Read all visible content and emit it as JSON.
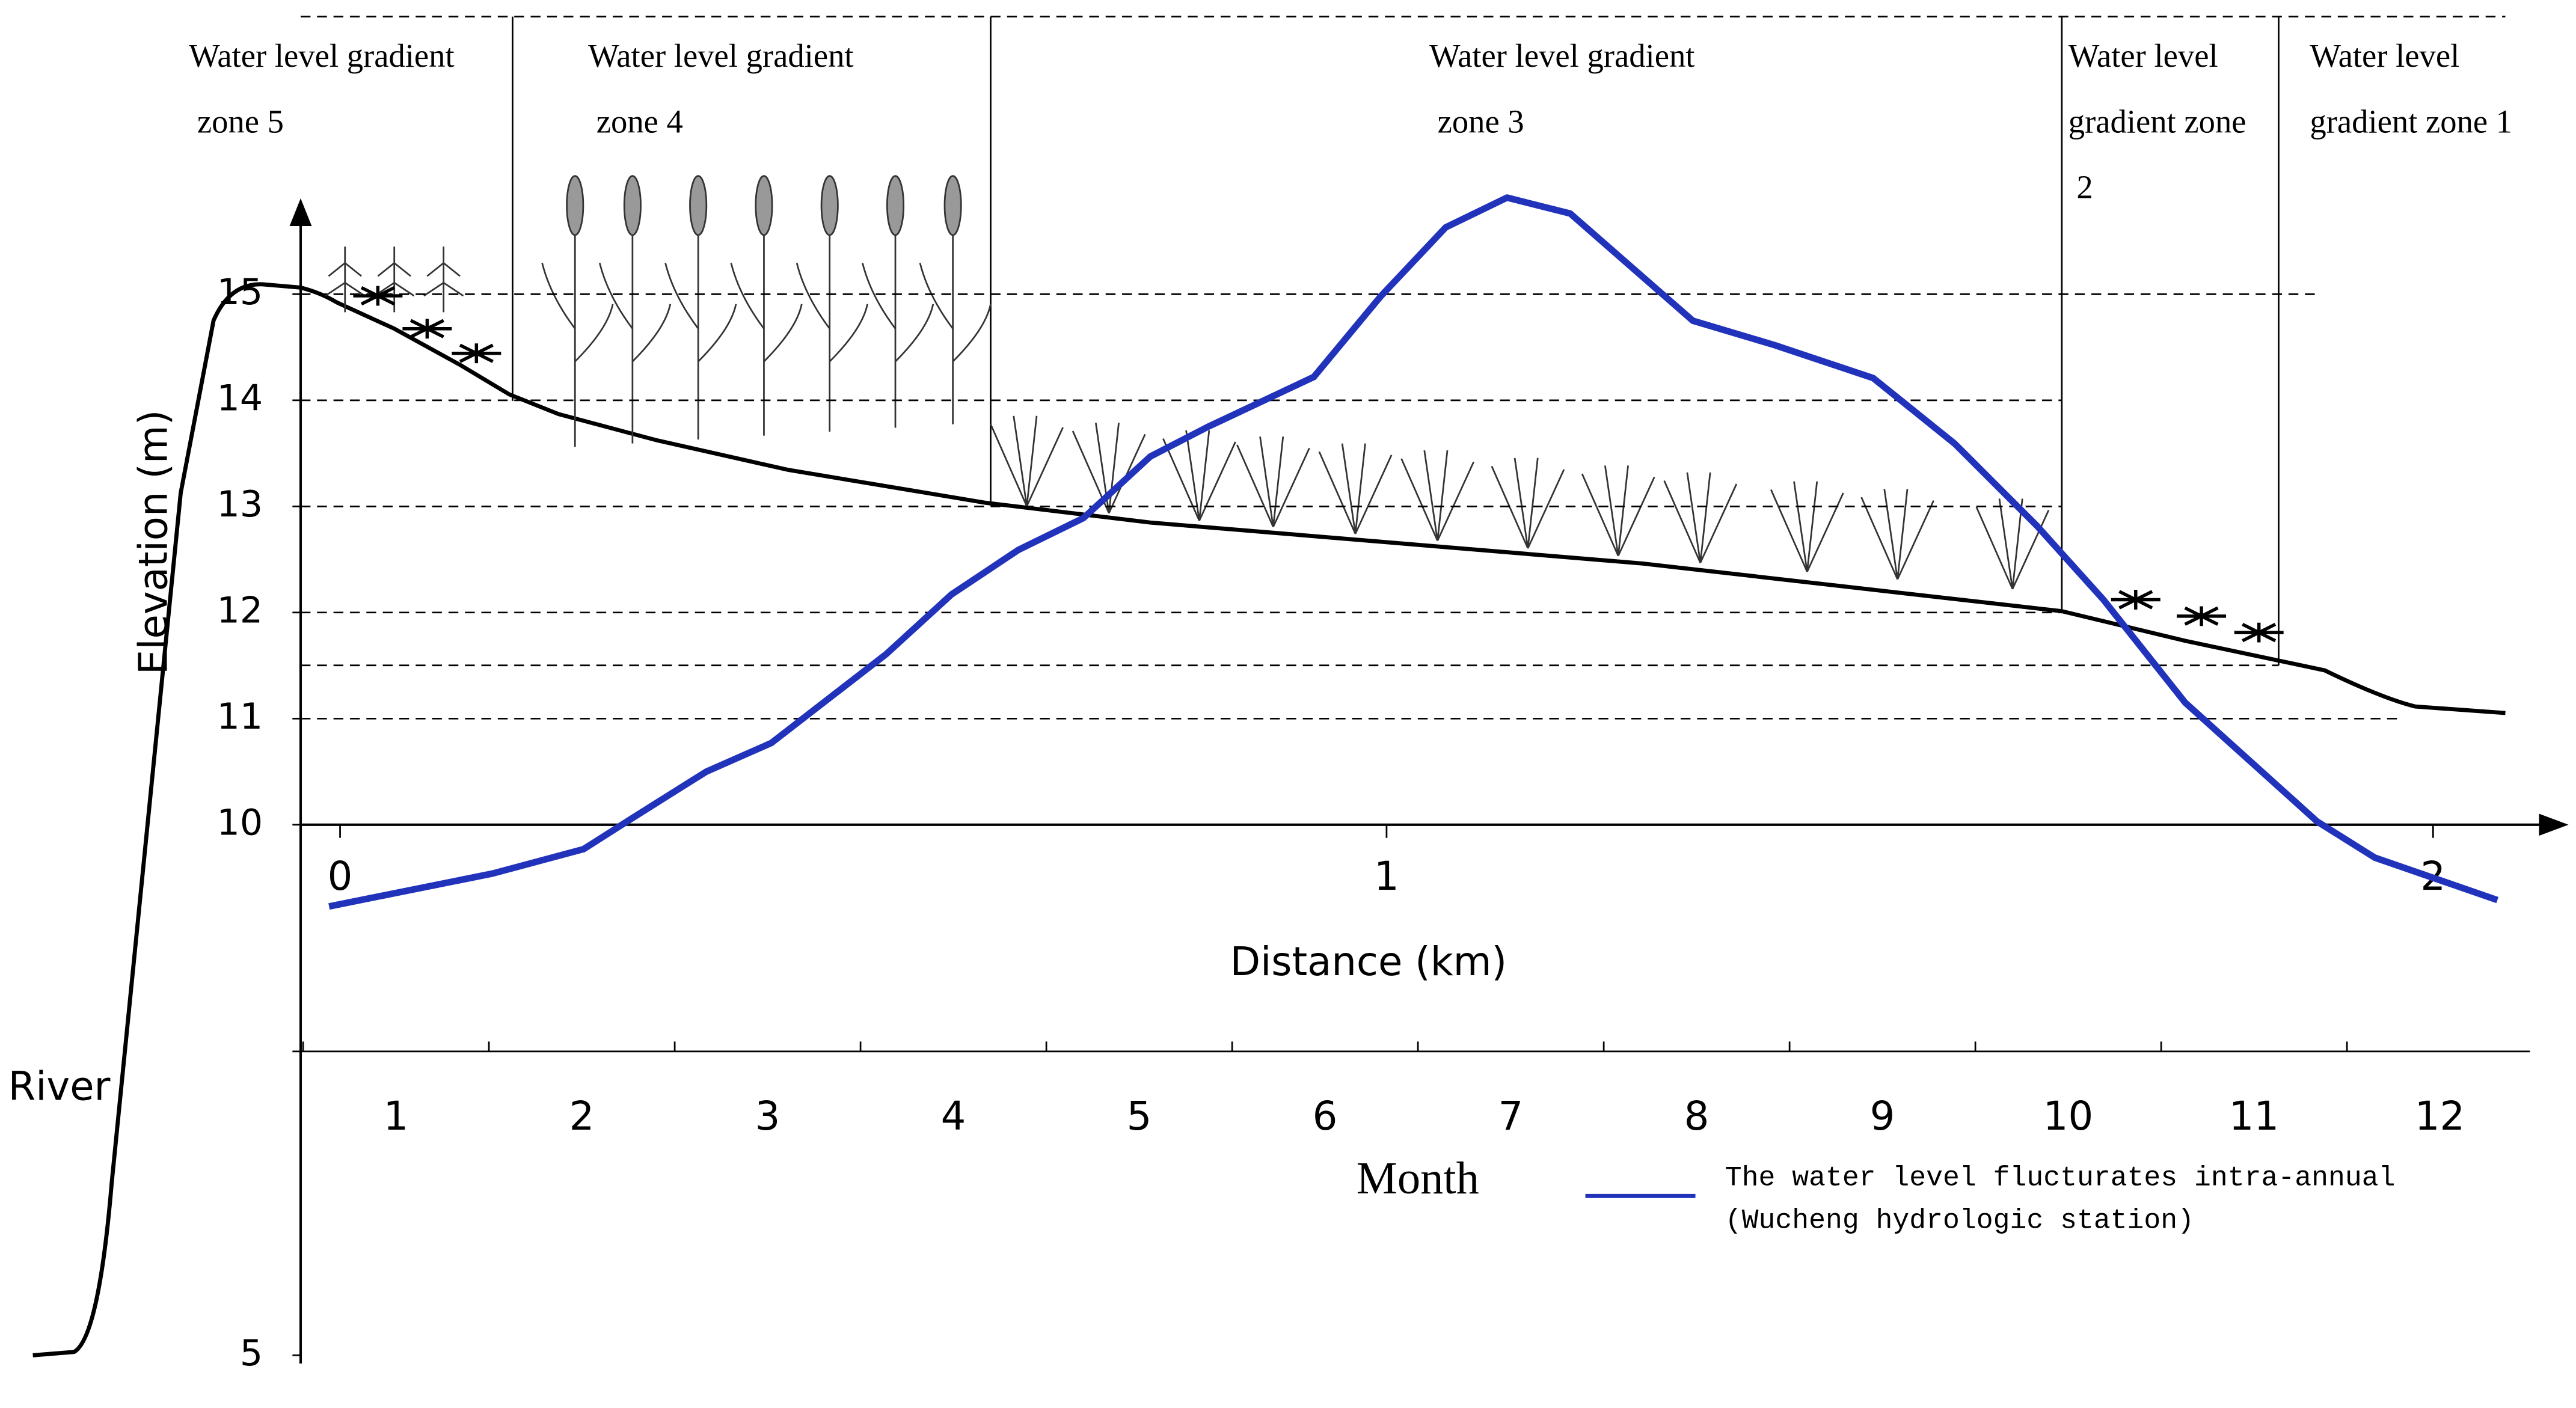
{
  "chart_data": {
    "type": "line",
    "y_label": "Elevation (m)",
    "x_label": "Distance (km)",
    "x2_label": "Month",
    "river_label": "River",
    "yticks": [
      5,
      10,
      11,
      12,
      13,
      14,
      15
    ],
    "xticks": [
      0,
      1,
      2
    ],
    "categories": [
      1,
      2,
      3,
      4,
      5,
      6,
      7,
      8,
      9,
      10,
      11,
      12
    ],
    "zones": [
      [
        "Water level gradient",
        "zone 5"
      ],
      [
        "Water level gradient",
        "zone 4"
      ],
      [
        "Water level gradient",
        "zone 3"
      ],
      [
        "Water level",
        "gradient  zone",
        "2"
      ],
      [
        "Water level",
        "gradient zone 1"
      ]
    ],
    "series": [
      {
        "name": "The water level flucturates intra-annual",
        "note": "(Wucheng hydrologic station)",
        "color": "#2233bb",
        "x": [
          0.64,
          1.52,
          2.01,
          2.27,
          2.67,
          3.02,
          3.64,
          3.99,
          4.35,
          4.7,
          5.06,
          5.37,
          5.94,
          6.3,
          6.65,
          6.98,
          7.32,
          7.98,
          8.42,
          8.95,
          9.39,
          9.83,
          10.19,
          10.63,
          11.34,
          11.65,
          12.31
        ],
        "values": [
          9.23,
          9.54,
          9.77,
          10.06,
          10.5,
          10.77,
          11.61,
          12.17,
          12.59,
          12.89,
          13.47,
          13.75,
          14.22,
          14.98,
          15.63,
          15.91,
          15.76,
          14.75,
          14.52,
          14.21,
          13.59,
          12.82,
          12.12,
          11.15,
          10.03,
          9.69,
          9.29
        ]
      }
    ]
  }
}
